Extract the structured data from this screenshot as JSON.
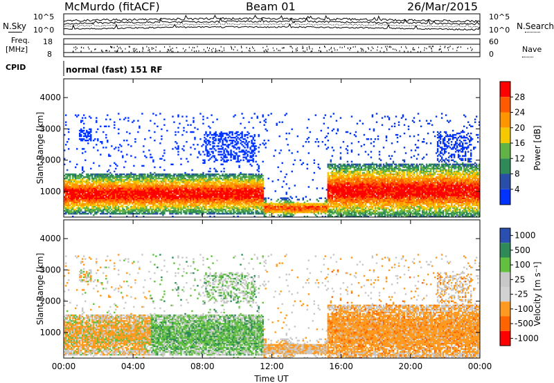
{
  "header": {
    "station": "McMurdo (fitACF)",
    "beam": "Beam 01",
    "date": "26/Mar/2015"
  },
  "top_panels": {
    "nsky_label": "N.Sky",
    "nsearch_label": "N.Search",
    "nsky_ticks": [
      "10^5",
      "10^0"
    ],
    "nsearch_ticks": [
      "10^5",
      "10^0"
    ],
    "freq_label_line1": "Freq.",
    "freq_label_line2": "[MHz]",
    "freq_ticks": [
      "18",
      "8"
    ],
    "nave_label": "Nave",
    "nave_ticks": [
      "60",
      "0"
    ],
    "cpid_label": "CPID",
    "cpid_text": "normal (fast) 151 RF"
  },
  "chart_data": [
    {
      "type": "heatmap",
      "name": "power",
      "xlabel": "Time UT",
      "ylabel": "Slant Range [km]",
      "xlim_hours": [
        0,
        24
      ],
      "ylim": [
        180,
        4600
      ],
      "x_ticks": [
        "00:00",
        "04:00",
        "08:00",
        "12:00",
        "16:00",
        "20:00",
        "00:00"
      ],
      "y_ticks": [
        1000,
        2000,
        3000,
        4000
      ],
      "colorbar": {
        "label": "Power [dB]",
        "ticks": [
          "28",
          "24",
          "20",
          "16",
          "12",
          "8",
          "4"
        ],
        "colors": [
          "#ff0000",
          "#ff5a00",
          "#ff9600",
          "#f5c800",
          "#62b346",
          "#2e8b57",
          "#284ea8",
          "#0033ff"
        ]
      },
      "features": [
        {
          "from_hour": 0,
          "to_hour": 11.5,
          "core_range_km": [
            600,
            1200
          ],
          "peak_db": 28
        },
        {
          "from_hour": 11.5,
          "to_hour": 15.2,
          "core_range_km": [
            300,
            600
          ],
          "peak_db": 24
        },
        {
          "from_hour": 15.2,
          "to_hour": 24,
          "core_range_km": [
            600,
            1400
          ],
          "peak_db": 28
        }
      ]
    },
    {
      "type": "heatmap",
      "name": "velocity",
      "xlabel": "Time UT",
      "ylabel": "Slant Range [km]",
      "xlim_hours": [
        0,
        24
      ],
      "ylim": [
        180,
        4600
      ],
      "x_ticks": [
        "00:00",
        "04:00",
        "08:00",
        "12:00",
        "16:00",
        "20:00",
        "00:00"
      ],
      "y_ticks": [
        1000,
        2000,
        3000,
        4000
      ],
      "colorbar": {
        "label": "Velocity [m s⁻¹]",
        "ticks": [
          "1000",
          "500",
          "100",
          "25",
          "-25",
          "-100",
          "-500",
          "-1000"
        ],
        "colors": [
          "#2a4fb0",
          "#2e8b57",
          "#62c040",
          "#c8c8c8",
          "#d2d2d2",
          "#ff9a20",
          "#ff6400",
          "#ff0000"
        ]
      },
      "features": [
        {
          "from_hour": 0,
          "to_hour": 5,
          "dominant_velocity": "-100"
        },
        {
          "from_hour": 5,
          "to_hour": 11.5,
          "dominant_velocity": "100"
        },
        {
          "from_hour": 15.2,
          "to_hour": 24,
          "dominant_velocity": "-100"
        }
      ]
    }
  ]
}
